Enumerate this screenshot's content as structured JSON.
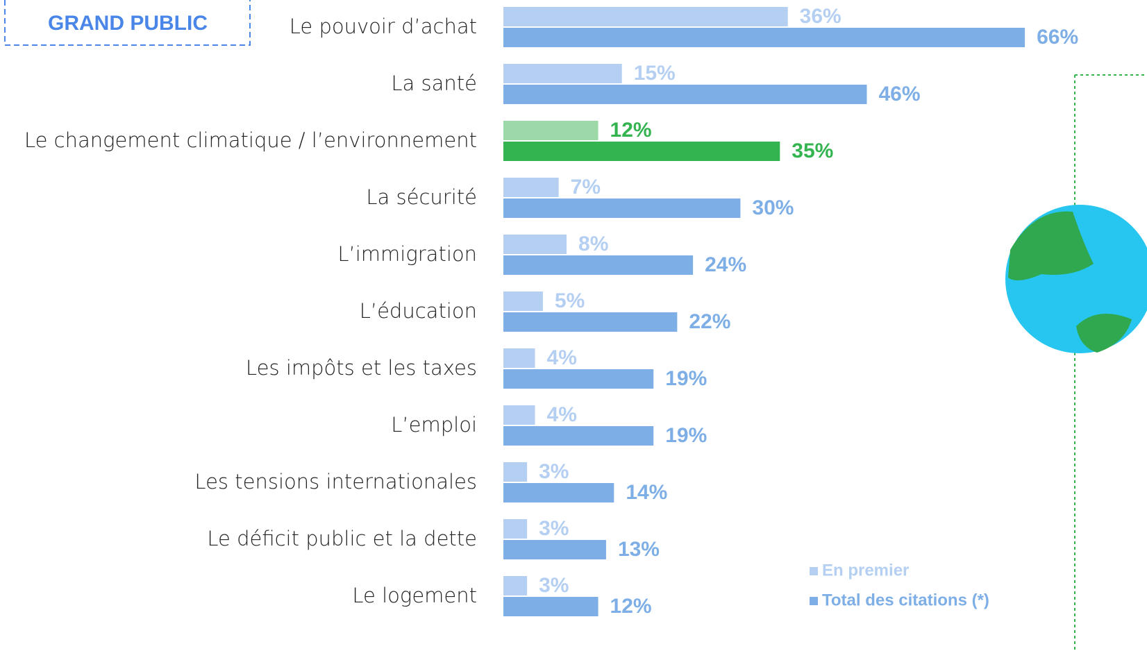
{
  "chart_data": {
    "type": "bar",
    "orientation": "horizontal",
    "panel_label": "GRAND PUBLIC",
    "categories": [
      "Le pouvoir d’achat",
      "La santé",
      "Le changement climatique / l’environnement",
      "La sécurité",
      "L’immigration",
      "L’éducation",
      "Les impôts et les taxes",
      "L’emploi",
      "Les tensions internationales",
      "Le déficit public et la dette",
      "Le logement"
    ],
    "series": [
      {
        "name": "En premier",
        "color": "#b4cff2",
        "colors": [
          "#b4cff2",
          "#b4cff2",
          "#9dd9a8",
          "#b4cff2",
          "#b4cff2",
          "#b4cff2",
          "#b4cff2",
          "#b4cff2",
          "#b4cff2",
          "#b4cff2",
          "#b4cff2"
        ],
        "label_colors": [
          "#b4cff2",
          "#b4cff2",
          "#34b450",
          "#b4cff2",
          "#b4cff2",
          "#b4cff2",
          "#b4cff2",
          "#b4cff2",
          "#b4cff2",
          "#b4cff2",
          "#b4cff2"
        ],
        "values": [
          36,
          15,
          12,
          7,
          8,
          5,
          4,
          4,
          3,
          3,
          3
        ],
        "value_labels": [
          "36%",
          "15%",
          "12%",
          "7%",
          "8%",
          "5%",
          "4%",
          "4%",
          "3%",
          "3%",
          "3%"
        ]
      },
      {
        "name": "Total des citations (*)",
        "color": "#7eaee6",
        "colors": [
          "#7eaee6",
          "#7eaee6",
          "#34b450",
          "#7eaee6",
          "#7eaee6",
          "#7eaee6",
          "#7eaee6",
          "#7eaee6",
          "#7eaee6",
          "#7eaee6",
          "#7eaee6"
        ],
        "label_colors": [
          "#7eaee6",
          "#7eaee6",
          "#34b450",
          "#7eaee6",
          "#7eaee6",
          "#7eaee6",
          "#7eaee6",
          "#7eaee6",
          "#7eaee6",
          "#7eaee6",
          "#7eaee6"
        ],
        "values": [
          66,
          46,
          35,
          30,
          24,
          22,
          19,
          19,
          14,
          13,
          12
        ],
        "value_labels": [
          "66%",
          "46%",
          "35%",
          "30%",
          "24%",
          "22%",
          "19%",
          "19%",
          "14%",
          "13%",
          "12%"
        ]
      }
    ]
  }
}
